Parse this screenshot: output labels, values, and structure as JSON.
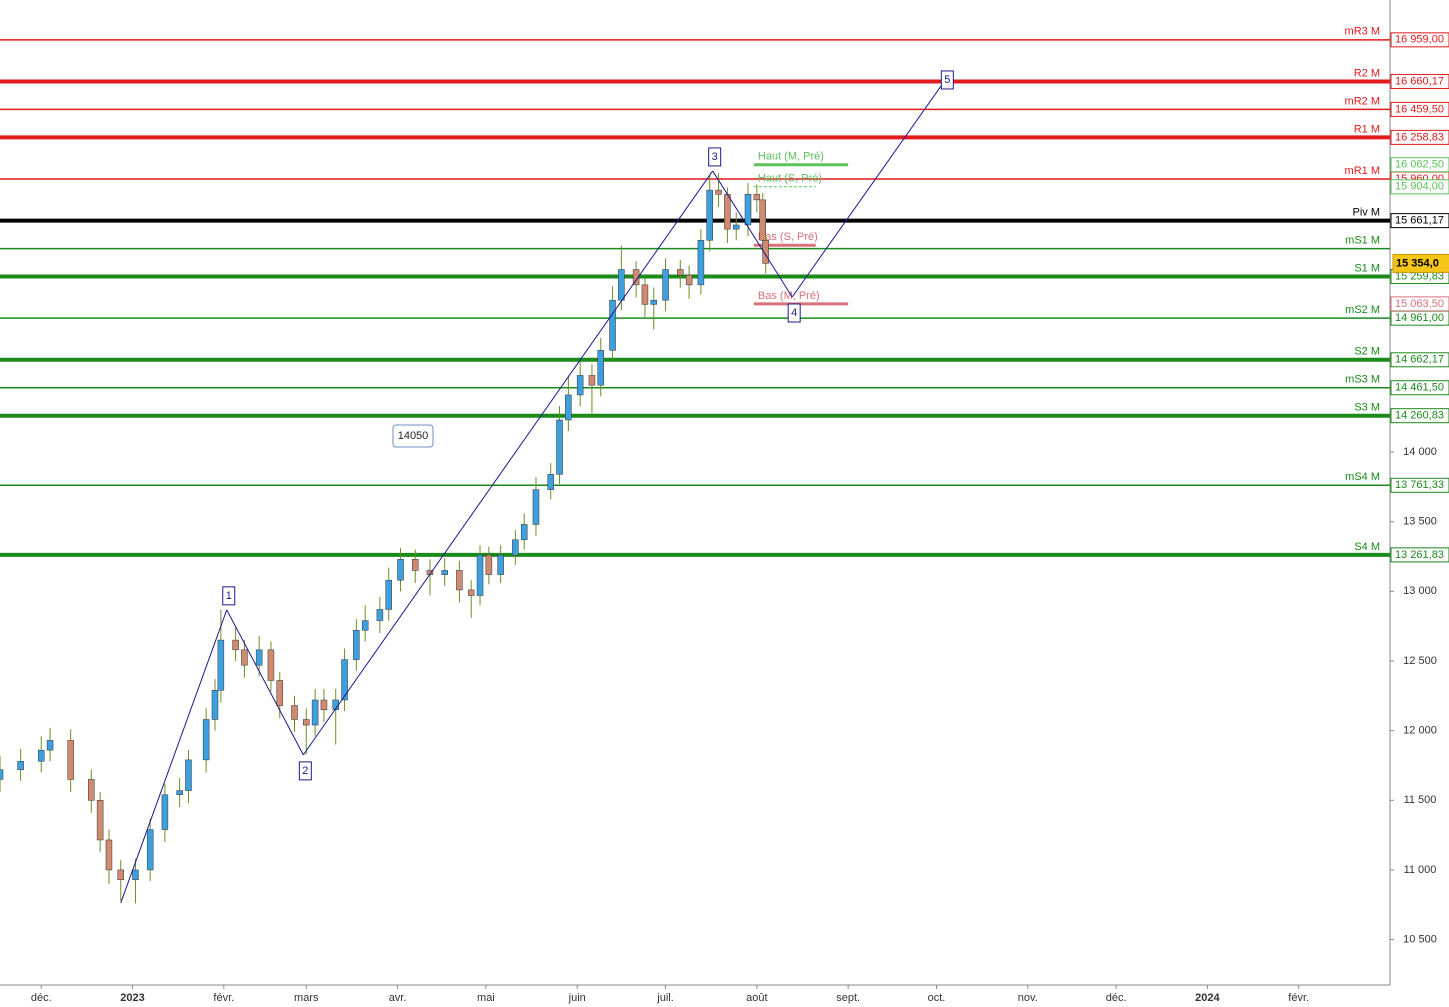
{
  "chart_data": {
    "type": "candlestick",
    "xlim": [
      -14,
      458
    ],
    "ylim": [
      10174,
      17245
    ],
    "xticks": [
      {
        "value": 0,
        "label": "déc."
      },
      {
        "value": 31,
        "label": "2023"
      },
      {
        "value": 62,
        "label": "févr."
      },
      {
        "value": 90,
        "label": "mars"
      },
      {
        "value": 121,
        "label": "avr."
      },
      {
        "value": 151,
        "label": "mai"
      },
      {
        "value": 182,
        "label": "juin"
      },
      {
        "value": 212,
        "label": "juil."
      },
      {
        "value": 243,
        "label": "août"
      },
      {
        "value": 274,
        "label": "sept."
      },
      {
        "value": 304,
        "label": "oct."
      },
      {
        "value": 335,
        "label": "nov."
      },
      {
        "value": 365,
        "label": "déc."
      },
      {
        "value": 396,
        "label": "2024"
      },
      {
        "value": 427,
        "label": "févr."
      }
    ],
    "yticks": [
      {
        "value": 10500,
        "label": "10 500"
      },
      {
        "value": 11000,
        "label": "11 000"
      },
      {
        "value": 11500,
        "label": "11 500"
      },
      {
        "value": 12000,
        "label": "12 000"
      },
      {
        "value": 12500,
        "label": "12 500"
      },
      {
        "value": 13000,
        "label": "13 000"
      },
      {
        "value": 13500,
        "label": "13 500"
      },
      {
        "value": 14000,
        "label": "14 000"
      }
    ],
    "up_color": "#3d9fdd",
    "down_color": "#cf8a70",
    "wick_color": "#6b8e23",
    "candles": {
      "x": [
        -14,
        -7,
        0,
        3,
        10,
        17,
        20,
        23,
        27,
        32,
        37,
        42,
        47,
        50,
        56,
        59,
        61,
        66,
        69,
        74,
        78,
        81,
        86,
        90,
        93,
        96,
        100,
        103,
        107,
        110,
        115,
        118,
        122,
        127,
        132,
        137,
        142,
        146,
        149,
        152,
        156,
        161,
        164,
        168,
        173,
        176,
        179,
        183,
        187,
        190,
        194,
        197,
        202,
        205,
        208,
        212,
        217,
        220,
        224,
        227,
        230,
        233,
        236,
        240,
        243,
        245,
        246
      ],
      "open": [
        11650,
        11720,
        11780,
        11860,
        11930,
        11650,
        11500,
        11215,
        11000,
        10930,
        11000,
        11290,
        11540,
        11570,
        11790,
        12080,
        12290,
        12650,
        12580,
        12470,
        12580,
        12360,
        12180,
        12080,
        12040,
        12220,
        12150,
        12220,
        12510,
        12720,
        12790,
        12870,
        13080,
        13230,
        13150,
        13120,
        13150,
        13010,
        12970,
        13260,
        13120,
        13260,
        13370,
        13480,
        13730,
        13840,
        14230,
        14410,
        14550,
        14480,
        14730,
        15090,
        15310,
        15200,
        15060,
        15090,
        15310,
        15270,
        15200,
        15520,
        15880,
        15850,
        15600,
        15630,
        15850,
        15810,
        15520
      ],
      "high": [
        11820,
        11870,
        11960,
        12020,
        12010,
        11720,
        11560,
        11290,
        11070,
        11080,
        11370,
        11620,
        11660,
        11860,
        12160,
        12370,
        12870,
        12740,
        12650,
        12680,
        12640,
        12420,
        12250,
        12160,
        12300,
        12300,
        12300,
        12590,
        12800,
        12900,
        12960,
        13170,
        13310,
        13300,
        13230,
        13240,
        13220,
        13080,
        13330,
        13320,
        13330,
        13440,
        13560,
        13820,
        13920,
        14330,
        14550,
        14660,
        14630,
        14820,
        15190,
        15480,
        15370,
        15260,
        15180,
        15390,
        15380,
        15340,
        15600,
        15990,
        16000,
        15900,
        15720,
        15930,
        15920,
        15860,
        15560
      ],
      "low": [
        11560,
        11640,
        11700,
        11780,
        11560,
        11410,
        11130,
        10900,
        10780,
        10760,
        10920,
        11200,
        11450,
        11480,
        11700,
        12000,
        12200,
        12500,
        12380,
        12390,
        12280,
        12090,
        11990,
        11830,
        11960,
        12060,
        11900,
        12140,
        12430,
        12640,
        12700,
        12790,
        13000,
        13060,
        12970,
        13040,
        12920,
        12810,
        12900,
        13050,
        13060,
        13190,
        13300,
        13400,
        13660,
        13770,
        14150,
        14330,
        14280,
        14400,
        14660,
        15020,
        15110,
        14970,
        14880,
        15010,
        15180,
        15100,
        15130,
        15440,
        15760,
        15500,
        15520,
        15550,
        15720,
        15440,
        15280
      ],
      "close": [
        11720,
        11780,
        11860,
        11930,
        11650,
        11500,
        11215,
        11000,
        10930,
        11000,
        11290,
        11540,
        11570,
        11790,
        12080,
        12290,
        12650,
        12580,
        12470,
        12580,
        12360,
        12180,
        12080,
        12040,
        12220,
        12150,
        12220,
        12510,
        12720,
        12790,
        12870,
        13080,
        13230,
        13150,
        13120,
        13150,
        13010,
        12970,
        13260,
        13120,
        13260,
        13370,
        13480,
        13730,
        13840,
        14230,
        14410,
        14550,
        14480,
        14730,
        15090,
        15310,
        15200,
        15060,
        15090,
        15310,
        15270,
        15200,
        15520,
        15880,
        15850,
        15600,
        15630,
        15850,
        15810,
        15520,
        15354
      ]
    },
    "pivots": [
      {
        "name": "mR3 M",
        "value": 16959.0,
        "label": "16 959,00",
        "color": "#e31a1c",
        "width": 1.5
      },
      {
        "name": "R2 M",
        "value": 16660.17,
        "label": "16 660,17",
        "color": "#e31a1c",
        "width": 4
      },
      {
        "name": "mR2 M",
        "value": 16459.5,
        "label": "16 459,50",
        "color": "#e31a1c",
        "width": 1.5
      },
      {
        "name": "R1 M",
        "value": 16258.83,
        "label": "16 258,83",
        "color": "#e31a1c",
        "width": 4
      },
      {
        "name": "mR1 M",
        "value": 15960.0,
        "label": "15 960,00",
        "color": "#e31a1c",
        "width": 1.5
      },
      {
        "name": "Piv M",
        "value": 15661.17,
        "label": "15 661,17",
        "color": "#000000",
        "width": 4
      },
      {
        "name": "mS1 M",
        "value": 15460.5,
        "color": "#1a8a1a",
        "width": 1.5
      },
      {
        "name": "S1 M",
        "value": 15259.83,
        "label": "15 259,83",
        "color": "#1a8a1a",
        "width": 4
      },
      {
        "name": "mS2 M",
        "value": 14961.0,
        "label": "14 961,00",
        "color": "#1a8a1a",
        "width": 1.5
      },
      {
        "name": "S2 M",
        "value": 14662.17,
        "label": "14 662,17",
        "color": "#1a8a1a",
        "width": 4
      },
      {
        "name": "mS3 M",
        "value": 14461.5,
        "label": "14 461,50",
        "color": "#1a8a1a",
        "width": 1.5
      },
      {
        "name": "S3 M",
        "value": 14260.83,
        "label": "14 260,83",
        "color": "#1a8a1a",
        "width": 4
      },
      {
        "name": "mS4 M",
        "value": 13761.33,
        "label": "13 761,33",
        "color": "#1a8a1a",
        "width": 1.5
      },
      {
        "name": "S4 M",
        "value": 13261.83,
        "label": "13 261,83",
        "color": "#1a8a1a",
        "width": 4
      }
    ],
    "levels": [
      {
        "name": "Haut (M, Pré)",
        "value": 16062.5,
        "label": "16 062,50",
        "color": "#5cc25c",
        "x": [
          242,
          274
        ],
        "dashed": false
      },
      {
        "name": "Haut (S, Pré)",
        "value": 15904.0,
        "label": "15 904,00",
        "color": "#5cc25c",
        "x": [
          242,
          263
        ],
        "dashed": true
      },
      {
        "name": "Bas (S, Pré)",
        "value": 15484.5,
        "color": "#d9707a",
        "x": [
          242,
          263
        ],
        "dashed": false
      },
      {
        "name": "Bas (M, Pré)",
        "value": 15063.5,
        "label": "15 063,50",
        "color": "#d9707a",
        "x": [
          242,
          274
        ],
        "dashed": false
      }
    ],
    "waves": {
      "color": "#1a1a8c",
      "labels": [
        null,
        "1",
        "2",
        "3",
        "4",
        "5"
      ],
      "x": [
        27,
        63,
        89,
        228,
        255,
        307
      ],
      "y": [
        10763,
        12867,
        11826,
        16018,
        15113,
        16671
      ]
    },
    "annotation": "14050",
    "last_price": {
      "value": 15354,
      "label": "15 354,0"
    }
  }
}
